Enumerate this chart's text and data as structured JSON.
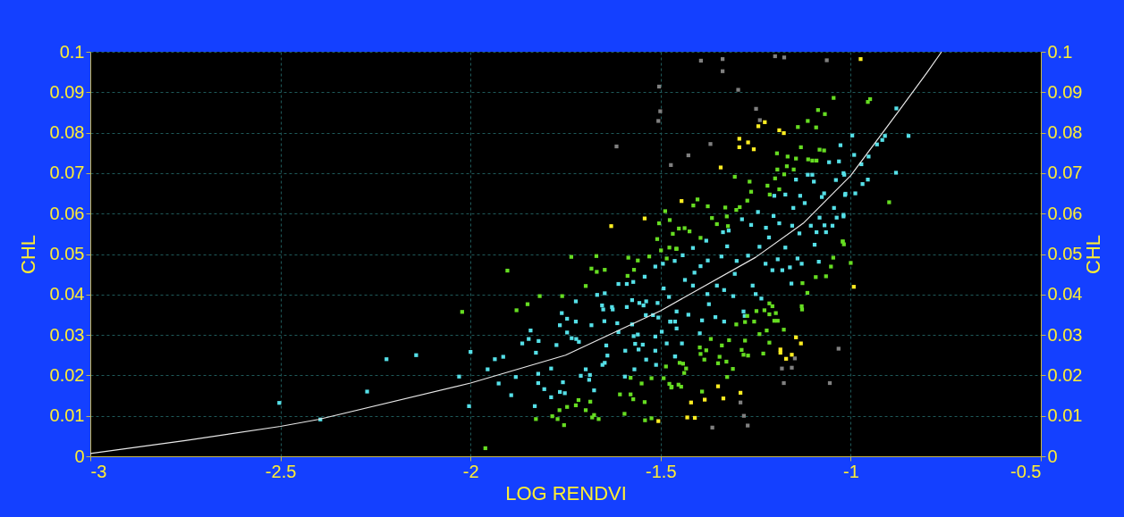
{
  "chart_data": {
    "type": "scatter",
    "xlabel": "LOG RENDVI",
    "ylabel": "CHL",
    "y2label": "CHL",
    "xlim": [
      -3,
      -0.5
    ],
    "xticks": [
      -3,
      -2.5,
      -2,
      -1.5,
      -1,
      -0.5
    ],
    "ylim": [
      0,
      0.1
    ],
    "yticks": [
      0,
      0.01,
      0.02,
      0.03,
      0.04,
      0.05,
      0.06,
      0.07,
      0.08,
      0.09,
      0.1
    ],
    "y2lim": [
      0,
      0.1
    ],
    "y2ticks": [
      0,
      0.01,
      0.02,
      0.03,
      0.04,
      0.05,
      0.06,
      0.07,
      0.08,
      0.09,
      0.1
    ],
    "grid": true,
    "legend": false,
    "marker": "square",
    "series": [
      {
        "color": "#55e0e8",
        "x": [
          -2.503,
          -2.395,
          -2.272,
          -2.221,
          -2.143,
          -2.03,
          -2.004,
          -2.0,
          -1.955,
          -1.936,
          -1.914,
          -1.926,
          -1.893,
          -1.881,
          -1.864,
          -1.847,
          -1.842,
          -1.828,
          -1.821,
          -1.822,
          -1.822,
          -1.831,
          -1.806,
          -1.788,
          -1.788,
          -1.774,
          -1.765,
          -1.76,
          -1.765,
          -1.752,
          -1.757,
          -1.746,
          -1.746,
          -1.734,
          -1.723,
          -1.723,
          -1.722,
          -1.715,
          -1.71,
          -1.697,
          -1.688,
          -1.686,
          -1.682,
          -1.675,
          -1.667,
          -1.654,
          -1.651,
          -1.648,
          -1.647,
          -1.643,
          -1.64,
          -1.653,
          -1.647,
          -1.628,
          -1.626,
          -1.614,
          -1.611,
          -1.611,
          -1.594,
          -1.593,
          -1.589,
          -1.589,
          -1.575,
          -1.575,
          -1.572,
          -1.571,
          -1.567,
          -1.569,
          -1.56,
          -1.556,
          -1.545,
          -1.542,
          -1.538,
          -1.539,
          -1.547,
          -1.558,
          -1.538,
          -1.52,
          -1.514,
          -1.508,
          -1.506,
          -1.514,
          -1.514,
          -1.512,
          -1.497,
          -1.494,
          -1.492,
          -1.484,
          -1.478,
          -1.475,
          -1.462,
          -1.463,
          -1.462,
          -1.458,
          -1.474,
          -1.458,
          -1.442,
          -1.444,
          -1.462,
          -1.436,
          -1.427,
          -1.415,
          -1.411,
          -1.415,
          -1.395,
          -1.391,
          -1.397,
          -1.38,
          -1.376,
          -1.377,
          -1.373,
          -1.356,
          -1.352,
          -1.34,
          -1.336,
          -1.333,
          -1.333,
          -1.325,
          -1.321,
          -1.309,
          -1.305,
          -1.3,
          -1.286,
          -1.282,
          -1.279,
          -1.27,
          -1.262,
          -1.258,
          -1.25,
          -1.244,
          -1.24,
          -1.235,
          -1.224,
          -1.223,
          -1.215,
          -1.206,
          -1.201,
          -1.203,
          -1.192,
          -1.188,
          -1.18,
          -1.172,
          -1.172,
          -1.16,
          -1.156,
          -1.154,
          -1.151,
          -1.144,
          -1.14,
          -1.135,
          -1.133,
          -1.129,
          -1.121,
          -1.113,
          -1.105,
          -1.101,
          -1.097,
          -1.095,
          -1.09,
          -1.084,
          -1.082,
          -1.076,
          -1.07,
          -1.069,
          -1.065,
          -1.057,
          -1.048,
          -1.044,
          -1.039,
          -1.037,
          -1.031,
          -1.019,
          -1.017,
          -1.015,
          -1.027,
          -1.019,
          -1.014,
          -1.019,
          -0.996,
          -0.991,
          -0.988,
          -0.972,
          -0.969,
          -0.955,
          -0.953,
          -0.931,
          -0.917,
          -0.91,
          -0.881,
          -0.88,
          -0.848
        ],
        "values": [
          0.0132,
          0.0091,
          0.016,
          0.024,
          0.025,
          0.0197,
          0.0124,
          0.0258,
          0.0215,
          0.024,
          0.0246,
          0.018,
          0.0151,
          0.0196,
          0.0279,
          0.029,
          0.0311,
          0.0256,
          0.0285,
          0.0204,
          0.0181,
          0.0124,
          0.0166,
          0.0217,
          0.0146,
          0.0275,
          0.0324,
          0.0354,
          0.0159,
          0.0156,
          0.0183,
          0.034,
          0.0306,
          0.0292,
          0.0383,
          0.0333,
          0.029,
          0.0283,
          0.0199,
          0.0215,
          0.0189,
          0.0201,
          0.0324,
          0.0163,
          0.0399,
          0.0373,
          0.0363,
          0.0334,
          0.0403,
          0.0274,
          0.0249,
          0.0226,
          0.0231,
          0.0369,
          0.0363,
          0.0329,
          0.0307,
          0.0426,
          0.0197,
          0.0261,
          0.0369,
          0.0426,
          0.0386,
          0.0326,
          0.0431,
          0.0297,
          0.0278,
          0.0215,
          0.0301,
          0.0379,
          0.0373,
          0.0444,
          0.0383,
          0.0349,
          0.0276,
          0.0264,
          0.0239,
          0.0349,
          0.0469,
          0.0379,
          0.0343,
          0.0296,
          0.0261,
          0.0226,
          0.0308,
          0.0476,
          0.0415,
          0.0279,
          0.0394,
          0.0333,
          0.0333,
          0.0483,
          0.0247,
          0.0316,
          0.0333,
          0.0358,
          0.0497,
          0.0279,
          0.0247,
          0.0436,
          0.035,
          0.0515,
          0.0454,
          0.0422,
          0.047,
          0.0336,
          0.0304,
          0.0533,
          0.0484,
          0.0401,
          0.0376,
          0.0344,
          0.0422,
          0.0494,
          0.0554,
          0.0411,
          0.0333,
          0.0519,
          0.0558,
          0.0396,
          0.0451,
          0.0483,
          0.0586,
          0.0358,
          0.0347,
          0.0496,
          0.0572,
          0.0422,
          0.0401,
          0.0604,
          0.0518,
          0.039,
          0.0476,
          0.0565,
          0.0541,
          0.046,
          0.0644,
          0.0594,
          0.0487,
          0.0576,
          0.046,
          0.0647,
          0.0516,
          0.0467,
          0.0427,
          0.057,
          0.0614,
          0.0684,
          0.0489,
          0.0551,
          0.0644,
          0.0476,
          0.0626,
          0.0696,
          0.057,
          0.0696,
          0.0679,
          0.0523,
          0.0554,
          0.0481,
          0.059,
          0.0641,
          0.065,
          0.0571,
          0.0554,
          0.0727,
          0.057,
          0.0614,
          0.0683,
          0.059,
          0.0729,
          0.0593,
          0.0696,
          0.0646,
          0.0769,
          0.07,
          0.0649,
          0.0597,
          0.0793,
          0.0745,
          0.065,
          0.0722,
          0.0673,
          0.0684,
          0.0741,
          0.0771,
          0.0782,
          0.0792,
          0.0701,
          0.086,
          0.0792
        ]
      },
      {
        "color": "#66dd22",
        "x": [
          -2.022,
          -1.961,
          -1.903,
          -1.879,
          -1.85,
          -1.818,
          -1.759,
          -1.735,
          -1.697,
          -1.682,
          -1.669,
          -1.668,
          -1.647,
          -1.828,
          -1.785,
          -1.771,
          -1.754,
          -1.766,
          -1.746,
          -1.723,
          -1.716,
          -1.697,
          -1.685,
          -1.68,
          -1.675,
          -1.663,
          -1.607,
          -1.595,
          -1.579,
          -1.579,
          -1.572,
          -1.55,
          -1.542,
          -1.541,
          -1.524,
          -1.524,
          -1.585,
          -1.587,
          -1.57,
          -1.56,
          -1.53,
          -1.509,
          -1.504,
          -1.499,
          -1.488,
          -1.484,
          -1.477,
          -1.476,
          -1.468,
          -1.458,
          -1.492,
          -1.486,
          -1.477,
          -1.472,
          -1.305,
          -1.266,
          -1.262,
          -1.272,
          -1.219,
          -1.213,
          -1.199,
          -1.194,
          -1.193,
          -1.188,
          -1.175,
          -1.168,
          -1.166,
          -1.15,
          -1.144,
          -1.131,
          -1.139,
          -1.113,
          -1.091,
          -1.086,
          -1.068,
          -1.045,
          -1.082,
          -1.07,
          -1.112,
          -1.101,
          -1.09,
          -1.403,
          -1.414,
          -1.376,
          -1.33,
          -1.301,
          -1.292,
          -1.326,
          -1.365,
          -1.352,
          -1.323,
          -1.452,
          -1.437,
          -1.424,
          -1.395,
          -1.459,
          -1.046,
          -1.052,
          -1.065,
          -1.092,
          -1.127,
          -1.114,
          -1.021,
          -1.129,
          -1.128,
          -1.214,
          -1.206,
          -1.197,
          -1.214,
          -1.201,
          -1.192,
          -1.176,
          -1.227,
          -1.248,
          -1.254,
          -1.278,
          -1.272,
          -1.301,
          -1.24,
          -1.221,
          -1.214,
          -1.278,
          -1.287,
          -1.32,
          -1.282,
          -1.27,
          -1.23,
          -1.368,
          -1.397,
          -1.38,
          -1.395,
          -1.385,
          -1.339,
          -1.345,
          -1.349,
          -1.327,
          -1.31,
          -1.325,
          -1.45,
          -1.441,
          -1.433,
          -1.438,
          -1.453,
          -1.446,
          -1.471,
          -1.391,
          -0.955,
          -0.949,
          -0.899,
          -1.021,
          -1.018,
          -1.0
        ],
        "values": [
          0.0357,
          0.002,
          0.0459,
          0.0361,
          0.0376,
          0.0396,
          0.0396,
          0.0493,
          0.0421,
          0.0464,
          0.0495,
          0.0456,
          0.0461,
          0.0092,
          0.0099,
          0.0092,
          0.0077,
          0.0114,
          0.0122,
          0.0126,
          0.0139,
          0.0114,
          0.0135,
          0.0096,
          0.0102,
          0.0092,
          0.0153,
          0.0105,
          0.0194,
          0.0153,
          0.0141,
          0.018,
          0.0134,
          0.0089,
          0.0193,
          0.0094,
          0.0491,
          0.0446,
          0.0461,
          0.0484,
          0.0494,
          0.0537,
          0.0576,
          0.0509,
          0.0606,
          0.0489,
          0.0516,
          0.0584,
          0.055,
          0.0513,
          0.0193,
          0.0222,
          0.0179,
          0.017,
          0.0691,
          0.0679,
          0.0654,
          0.0632,
          0.0669,
          0.0647,
          0.0687,
          0.0749,
          0.0709,
          0.066,
          0.0697,
          0.0717,
          0.0741,
          0.0709,
          0.0736,
          0.0764,
          0.0814,
          0.0829,
          0.0813,
          0.0856,
          0.0846,
          0.0886,
          0.0758,
          0.0756,
          0.0734,
          0.0731,
          0.0731,
          0.0635,
          0.062,
          0.0618,
          0.0615,
          0.0609,
          0.0616,
          0.0593,
          0.0589,
          0.0574,
          0.0569,
          0.0563,
          0.0564,
          0.0556,
          0.054,
          0.0513,
          0.0491,
          0.0469,
          0.0445,
          0.0443,
          0.0428,
          0.0404,
          0.0531,
          0.0371,
          0.0363,
          0.0378,
          0.0371,
          0.0354,
          0.0351,
          0.0335,
          0.0335,
          0.0313,
          0.0361,
          0.0359,
          0.0333,
          0.0332,
          0.0347,
          0.0326,
          0.0302,
          0.0311,
          0.0281,
          0.0286,
          0.0263,
          0.0287,
          0.0251,
          0.0249,
          0.0254,
          0.029,
          0.0269,
          0.0262,
          0.0253,
          0.0239,
          0.0274,
          0.0246,
          0.023,
          0.0234,
          0.0216,
          0.0196,
          0.0231,
          0.0229,
          0.0217,
          0.0206,
          0.0177,
          0.0172,
          0.0172,
          0.016,
          0.0876,
          0.0883,
          0.0628,
          0.0531,
          0.0524,
          0.0478
        ]
      },
      {
        "color": "#ffee22",
        "x": [
          -1.63,
          -1.542,
          -1.506,
          -1.226,
          -1.243,
          -1.188,
          -1.176,
          -1.293,
          -1.27,
          -1.293,
          -1.255,
          -1.342,
          -1.445,
          -1.144,
          -1.131,
          -1.185,
          -1.185,
          -1.155,
          -1.17,
          -1.349,
          -1.29,
          -1.42,
          -1.384,
          -1.335,
          -1.43,
          -1.41,
          -0.974,
          -0.992
        ],
        "values": [
          0.0569,
          0.0588,
          0.0087,
          0.0826,
          0.0816,
          0.0806,
          0.0799,
          0.0785,
          0.0776,
          0.0764,
          0.0759,
          0.0714,
          0.0631,
          0.0294,
          0.0279,
          0.0264,
          0.0256,
          0.0251,
          0.0241,
          0.0173,
          0.0157,
          0.0133,
          0.014,
          0.0143,
          0.0096,
          0.0095,
          0.0982,
          0.0419
        ]
      },
      {
        "color": "#808080",
        "x": [
          -1.504,
          -1.501,
          -1.506,
          -1.616,
          -1.473,
          -1.394,
          -1.337,
          -1.337,
          -1.199,
          -1.175,
          -1.063,
          -1.296,
          -1.249,
          -1.239,
          -1.369,
          -1.427,
          -1.032,
          -1.147,
          -1.181,
          -1.155,
          -1.176,
          -1.055,
          -1.29,
          -1.281,
          -1.271,
          -1.364
        ],
        "values": [
          0.0914,
          0.0853,
          0.0829,
          0.0766,
          0.072,
          0.0978,
          0.0982,
          0.0952,
          0.0989,
          0.0986,
          0.0979,
          0.0906,
          0.0859,
          0.0831,
          0.0772,
          0.0744,
          0.0266,
          0.0242,
          0.0217,
          0.0219,
          0.0181,
          0.0181,
          0.0133,
          0.01,
          0.0076,
          0.0071
        ]
      },
      {
        "type": "line",
        "color": "#e8e8e8",
        "marker": "none",
        "x": [
          -3,
          -2.75,
          -2.5,
          -2.4,
          -2,
          -1.75,
          -1.5,
          -1.25,
          -1.125,
          -1,
          -0.875,
          -0.8,
          -0.761
        ],
        "values": [
          0.0007,
          0.0039,
          0.0074,
          0.0091,
          0.0181,
          0.025,
          0.036,
          0.0492,
          0.0576,
          0.0694,
          0.0852,
          0.0948,
          0.1
        ]
      }
    ]
  }
}
